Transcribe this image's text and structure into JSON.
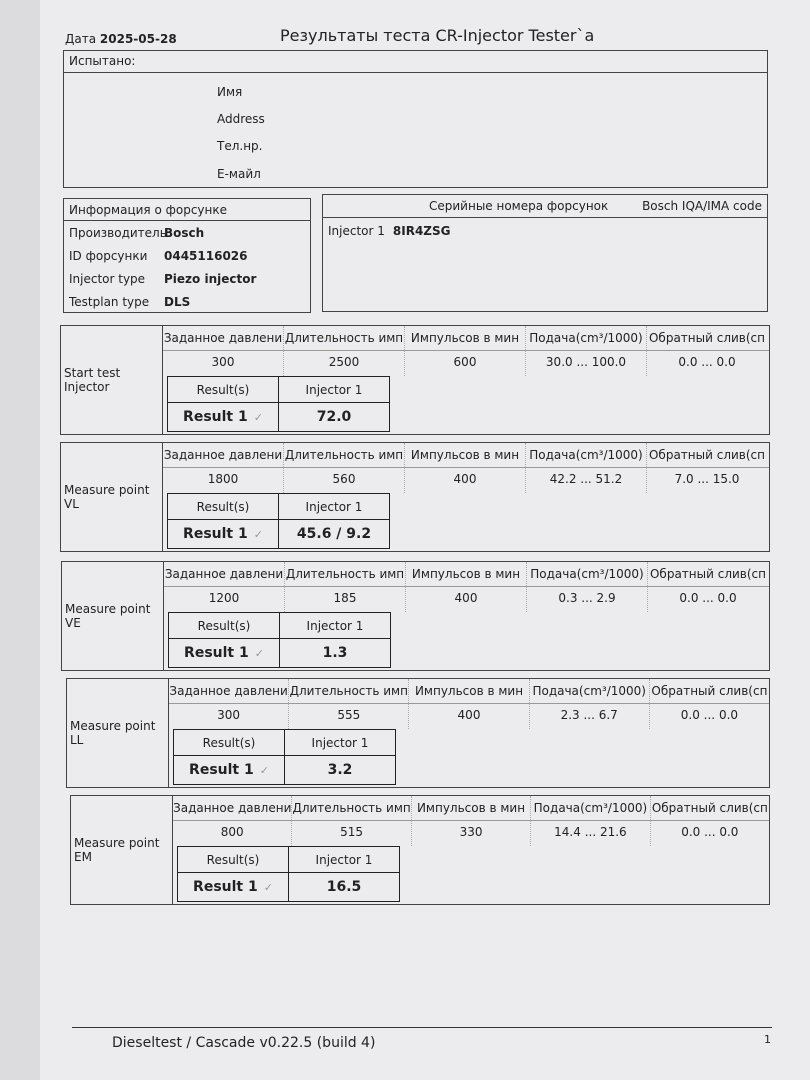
{
  "header": {
    "date_label": "Дата",
    "date": "2025-05-28",
    "title": "Результаты теста CR-Injector Tester`a"
  },
  "tested": {
    "caption": "Испытано:",
    "fields": [
      "Имя",
      "Address",
      "Тел.нр.",
      "Е-майл"
    ]
  },
  "injector_info": {
    "caption": "Информация о форсунке",
    "rows": [
      {
        "key": "Производитель",
        "value": "Bosch"
      },
      {
        "key": "ID форсунки",
        "value": "0445116026"
      },
      {
        "key": "Injector type",
        "value": "Piezo injector"
      },
      {
        "key": "Testplan type",
        "value": "DLS"
      }
    ]
  },
  "serials": {
    "caption": "Серийные номера форсунок",
    "code_caption": "Bosch IQA/IMA code",
    "injector_label": "Injector 1",
    "code": "8IR4ZSG"
  },
  "columns": [
    "Заданное давлени",
    "Длительность имп",
    "Импульсов в мин",
    "Подача(cm³/1000)",
    "Обратный слив(сп"
  ],
  "result_headers": [
    "Result(s)",
    "Injector 1"
  ],
  "result_label": "Result 1",
  "check_mark": "✓",
  "tests": [
    {
      "name": "Start test Injector",
      "values": [
        "300",
        "2500",
        "600",
        "30.0 ... 100.0",
        "0.0 ... 0.0"
      ],
      "result": "72.0"
    },
    {
      "name": "Measure point VL",
      "values": [
        "1800",
        "560",
        "400",
        "42.2 ... 51.2",
        "7.0 ... 15.0"
      ],
      "result": "45.6  /  9.2"
    },
    {
      "name": "Measure point VE",
      "values": [
        "1200",
        "185",
        "400",
        "0.3 ... 2.9",
        "0.0 ... 0.0"
      ],
      "result": "1.3"
    },
    {
      "name": "Measure point LL",
      "values": [
        "300",
        "555",
        "400",
        "2.3 ... 6.7",
        "0.0 ... 0.0"
      ],
      "result": "3.2"
    },
    {
      "name": "Measure point EM",
      "values": [
        "800",
        "515",
        "330",
        "14.4 ... 21.6",
        "0.0 ... 0.0"
      ],
      "result": "16.5"
    }
  ],
  "footer": {
    "software": "Dieseltest / Cascade v0.22.5 (build 4)",
    "page": "1"
  }
}
